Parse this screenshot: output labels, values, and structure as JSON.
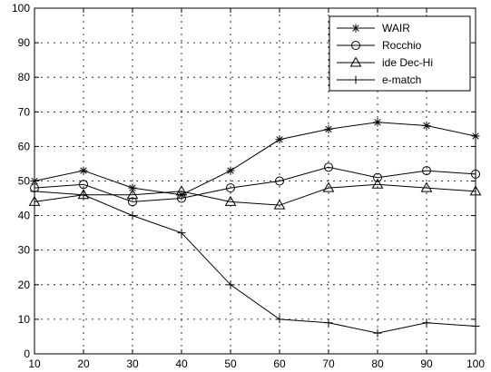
{
  "chart_data": {
    "type": "line",
    "title": "",
    "xlabel": "",
    "ylabel": "",
    "xlim": [
      10,
      100
    ],
    "ylim": [
      0,
      100
    ],
    "x_ticks": [
      10,
      20,
      30,
      40,
      50,
      60,
      70,
      80,
      90,
      100
    ],
    "y_ticks": [
      0,
      10,
      20,
      30,
      40,
      50,
      60,
      70,
      80,
      90,
      100
    ],
    "grid": true,
    "legend_position": "top-right",
    "x": [
      10,
      20,
      30,
      40,
      50,
      60,
      70,
      80,
      90,
      100
    ],
    "series": [
      {
        "name": "WAIR",
        "marker": "asterisk",
        "values": [
          50,
          53,
          48,
          46,
          53,
          62,
          65,
          67,
          66,
          63
        ]
      },
      {
        "name": "Rocchio",
        "marker": "circle",
        "values": [
          48,
          49,
          44,
          45,
          48,
          50,
          54,
          51,
          53,
          52
        ]
      },
      {
        "name": "ide Dec-Hi",
        "marker": "triangle",
        "values": [
          44,
          46,
          46,
          47,
          44,
          43,
          48,
          49,
          48,
          47
        ]
      },
      {
        "name": "e-match",
        "marker": "plus",
        "values": [
          47,
          46,
          40,
          35,
          20,
          10,
          9,
          6,
          9,
          8
        ]
      }
    ]
  }
}
